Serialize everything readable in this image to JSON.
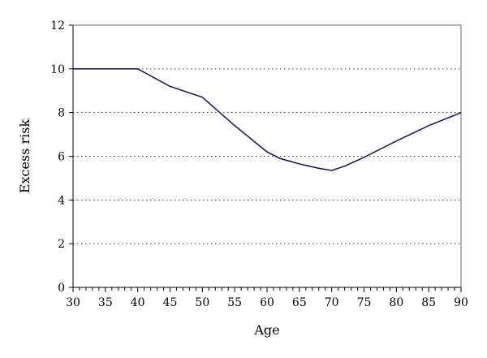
{
  "chart_data": {
    "type": "line",
    "title": "",
    "xlabel": "Age",
    "ylabel": "Excess risk",
    "xlim": [
      30,
      90
    ],
    "ylim": [
      0,
      12
    ],
    "x_ticks": [
      30,
      35,
      40,
      45,
      50,
      55,
      60,
      65,
      70,
      75,
      80,
      85,
      90
    ],
    "y_ticks": [
      0,
      2,
      4,
      6,
      8,
      10,
      12
    ],
    "x_tick_labels": [
      "30",
      "35",
      "40",
      "45",
      "50",
      "55",
      "60",
      "65",
      "70",
      "75",
      "80",
      "85",
      "90"
    ],
    "y_tick_labels": [
      "0",
      "2",
      "4",
      "6",
      "8",
      "10",
      "12"
    ],
    "x_minor_step": 1,
    "grid": "horizontal-dotted",
    "legend": "none",
    "series": [
      {
        "color": "#1a1a6e",
        "x": [
          30,
          35,
          40,
          45,
          50,
          55,
          60,
          62,
          65,
          68,
          70,
          72,
          75,
          80,
          85,
          90
        ],
        "y": [
          10,
          10,
          10,
          9.2,
          8.7,
          7.4,
          6.2,
          5.9,
          5.65,
          5.45,
          5.35,
          5.55,
          5.95,
          6.7,
          7.4,
          8.0
        ]
      }
    ]
  }
}
